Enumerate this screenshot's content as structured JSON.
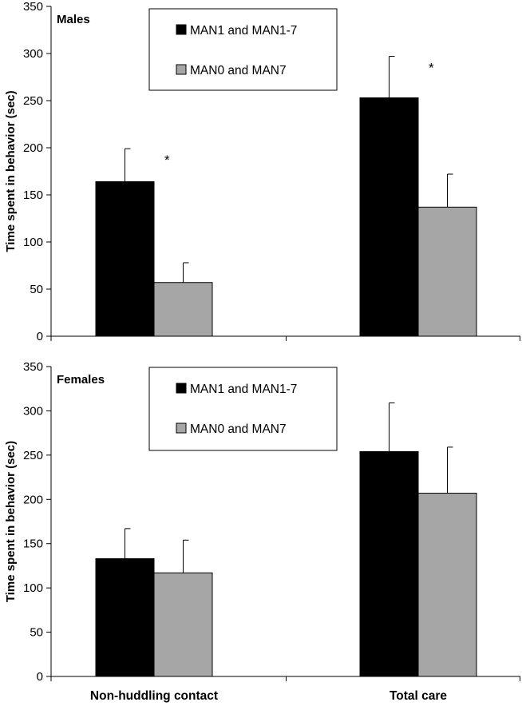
{
  "chart_data": [
    {
      "type": "bar",
      "panel_label": "Males",
      "ylabel": "Time spent in behavior (sec)",
      "xlabel": "",
      "ylim": [
        0,
        350
      ],
      "yticks": [
        0,
        50,
        100,
        150,
        200,
        250,
        300,
        350
      ],
      "ytick_labels": [
        "0",
        "50",
        "100",
        "150",
        "200",
        "250",
        "300",
        "350"
      ],
      "categories": [
        "Non-huddling contact",
        "Total care"
      ],
      "series": [
        {
          "name": "MAN1 and MAN1-7",
          "color": "#000000",
          "values": [
            164,
            253
          ],
          "errors": [
            35,
            44
          ]
        },
        {
          "name": "MAN0 and MAN7",
          "color": "#a6a6a6",
          "values": [
            57,
            137
          ],
          "errors": [
            21,
            35
          ]
        }
      ],
      "annotations": [
        {
          "text": "*",
          "category": 0
        },
        {
          "text": "*",
          "category": 1
        }
      ],
      "legend": "top-center",
      "grid": false
    },
    {
      "type": "bar",
      "panel_label": "Females",
      "ylabel": "Time spent in behavior (sec)",
      "xlabel": "",
      "ylim": [
        0,
        350
      ],
      "yticks": [
        0,
        50,
        100,
        150,
        200,
        250,
        300,
        350
      ],
      "ytick_labels": [
        "0",
        "50",
        "100",
        "150",
        "200",
        "250",
        "300",
        "350"
      ],
      "categories": [
        "Non-huddling contact",
        "Total care"
      ],
      "series": [
        {
          "name": "MAN1 and MAN1-7",
          "color": "#000000",
          "values": [
            133,
            254
          ],
          "errors": [
            34,
            55
          ]
        },
        {
          "name": "MAN0 and MAN7",
          "color": "#a6a6a6",
          "values": [
            117,
            207
          ],
          "errors": [
            37,
            52
          ]
        }
      ],
      "annotations": [],
      "legend": "top-center",
      "grid": false
    }
  ]
}
